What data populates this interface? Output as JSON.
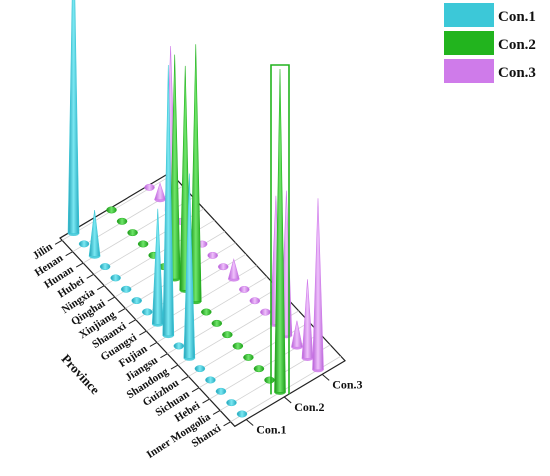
{
  "chart_data": {
    "type": "3d-cone",
    "ylabel": "Province",
    "provinces": [
      "Jilin",
      "Henan",
      "Hunan",
      "Hubei",
      "Ningxia",
      "Qinghai",
      "Xinjiang",
      "Shaanxi",
      "Guangxi",
      "Fujian",
      "Jiangsu",
      "Shandong",
      "Guizhou",
      "Sichuan",
      "Hebei",
      "Inner Mongolia",
      "Shanxi"
    ],
    "conditions": [
      "Con.1",
      "Con.2",
      "Con.3"
    ],
    "series": [
      {
        "name": "Con.1",
        "color": "#3CC8D8",
        "values": [
          0.95,
          0.01,
          0.14,
          0.01,
          0.01,
          0.01,
          0.01,
          0.01,
          0.35,
          0.82,
          0.01,
          0.56,
          0.01,
          0.01,
          0.01,
          0.01,
          0.01
        ]
      },
      {
        "name": "Con.2",
        "color": "#22B41E",
        "values": [
          0.01,
          0.01,
          0.01,
          0.01,
          0.01,
          0.01,
          0.68,
          0.68,
          0.78,
          0.01,
          0.01,
          0.01,
          0.01,
          0.01,
          0.01,
          0.01,
          0.98
        ]
      },
      {
        "name": "Con.3",
        "color": "#CF7BEA",
        "values": [
          0.01,
          0.05,
          0.5,
          0.01,
          0.01,
          0.01,
          0.01,
          0.01,
          0.06,
          0.01,
          0.01,
          0.01,
          0.39,
          0.44,
          0.08,
          0.24,
          0.52
        ]
      }
    ],
    "highlight": {
      "series": "Con.2",
      "province": "Shanxi"
    },
    "legend": "top-right",
    "grid": true
  }
}
